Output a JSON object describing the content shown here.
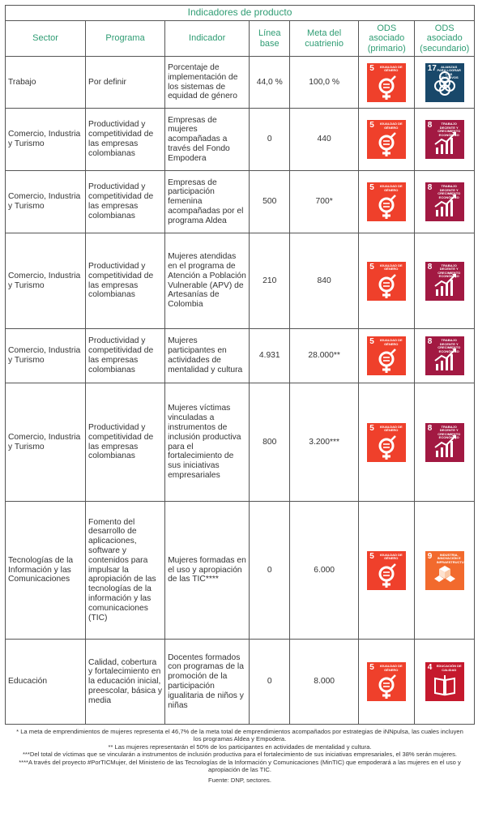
{
  "table": {
    "title": "Indicadores de producto",
    "headers": {
      "sector": "Sector",
      "programa": "Programa",
      "indicador": "Indicador",
      "linea_base": "Línea base",
      "meta": "Meta del cuatrienio",
      "ods_primario": "ODS asociado (primario)",
      "ods_secundario": "ODS asociado (secundario)"
    },
    "rows": [
      {
        "sector": "Trabajo",
        "programa": "Por definir",
        "indicador": "Porcentaje de implementación de los sistemas de equidad de género",
        "linea_base": "44,0 %",
        "meta": "100,0 %",
        "ods1": {
          "num": "5",
          "label": "Igualdad de género",
          "color": "#ef402b",
          "icon": "gender-equality-icon"
        },
        "ods2": {
          "num": "17",
          "label": "Alianzas para lograr los objetivos",
          "color": "#19486a",
          "icon": "partnership-flower-icon"
        }
      },
      {
        "sector": "Comercio, Industria y Turismo",
        "programa": "Productividad y competitividad de las empresas colombianas",
        "indicador": "Empresas de mujeres acompañadas a través del Fondo Empodera",
        "linea_base": "0",
        "meta": "440",
        "ods1": {
          "num": "5",
          "label": "Igualdad de género",
          "color": "#ef402b",
          "icon": "gender-equality-icon"
        },
        "ods2": {
          "num": "8",
          "label": "Trabajo decente y crecimiento económico",
          "color": "#a21942",
          "icon": "growth-chart-icon"
        }
      },
      {
        "sector": "Comercio, Industria y Turismo",
        "programa": "Productividad y competitividad de las empresas colombianas",
        "indicador": "Empresas de participación femenina acompañadas por el programa Aldea",
        "linea_base": "500",
        "meta": "700*",
        "ods1": {
          "num": "5",
          "label": "Igualdad de género",
          "color": "#ef402b",
          "icon": "gender-equality-icon"
        },
        "ods2": {
          "num": "8",
          "label": "Trabajo decente y crecimiento económico",
          "color": "#a21942",
          "icon": "growth-chart-icon"
        }
      },
      {
        "sector": "Comercio, Industria y Turismo",
        "programa": "Productividad y competitividad de las empresas colombianas",
        "indicador": "Mujeres atendidas en el programa de Atención a Población Vulnerable (APV) de Artesanías de Colombia",
        "linea_base": "210",
        "meta": "840",
        "ods1": {
          "num": "5",
          "label": "Igualdad de género",
          "color": "#ef402b",
          "icon": "gender-equality-icon"
        },
        "ods2": {
          "num": "8",
          "label": "Trabajo decente y crecimiento económico",
          "color": "#a21942",
          "icon": "growth-chart-icon"
        }
      },
      {
        "sector": "Comercio, Industria y Turismo",
        "programa": "Productividad y competitividad de las empresas colombianas",
        "indicador": "Mujeres participantes en actividades de mentalidad y cultura",
        "linea_base": "4.931",
        "meta": "28.000**",
        "ods1": {
          "num": "5",
          "label": "Igualdad de género",
          "color": "#ef402b",
          "icon": "gender-equality-icon"
        },
        "ods2": {
          "num": "8",
          "label": "Trabajo decente y crecimiento económico",
          "color": "#a21942",
          "icon": "growth-chart-icon"
        }
      },
      {
        "sector": "Comercio, Industria y Turismo",
        "programa": "Productividad y competitividad de las empresas colombianas",
        "indicador": "Mujeres víctimas vinculadas a instrumentos de inclusión productiva para el fortalecimiento de sus iniciativas empresariales",
        "linea_base": "800",
        "meta": "3.200***",
        "ods1": {
          "num": "5",
          "label": "Igualdad de género",
          "color": "#ef402b",
          "icon": "gender-equality-icon"
        },
        "ods2": {
          "num": "8",
          "label": "Trabajo decente y crecimiento económico",
          "color": "#a21942",
          "icon": "growth-chart-icon"
        }
      },
      {
        "sector": "Tecnologías de la Información y las Comunicaciones",
        "programa": "Fomento del desarrollo de aplicaciones, software y contenidos para impulsar la apropiación de las tecnologías de la información y las comunicaciones (TIC)",
        "indicador": "Mujeres formadas en el uso y apropiación de las TIC****",
        "linea_base": "0",
        "meta": "6.000",
        "ods1": {
          "num": "5",
          "label": "Igualdad de género",
          "color": "#ef402b",
          "icon": "gender-equality-icon"
        },
        "ods2": {
          "num": "9",
          "label": "Industria, innovación e infraestructura",
          "color": "#f26a2d",
          "icon": "cubes-icon"
        }
      },
      {
        "sector": "Educación",
        "programa": "Calidad, cobertura y fortalecimiento en la educación inicial, preescolar, básica y media",
        "indicador": "Docentes formados con programas de la promoción de la participación igualitaria de niños y niñas",
        "linea_base": "0",
        "meta": "8.000",
        "ods1": {
          "num": "5",
          "label": "Igualdad de género",
          "color": "#ef402b",
          "icon": "gender-equality-icon"
        },
        "ods2": {
          "num": "4",
          "label": "Educación de calidad",
          "color": "#c5192d",
          "icon": "book-icon"
        }
      }
    ]
  },
  "notes": [
    "* La meta de emprendimientos de mujeres representa el 46,7% de la meta total de emprendimientos acompañados por estrategias de iNNpulsa, las cuales incluyen los programas Aldea y Empodera.",
    "** Las mujeres representarán el 50% de los participantes en actividades de mentalidad y cultura.",
    "***Del total de víctimas que se vincularán a instrumentos de inclusión productiva para el fortalecimiento de sus iniciativas empresariales, el 38% serán mujeres.",
    "****A través del proyecto #PorTICMujer, del Ministerio de las Tecnologías de la Información y Comunicaciones (MinTIC) que empoderará a las mujeres en el uso y apropiación de las TIC."
  ],
  "source": "Fuente: DNP, sectores."
}
